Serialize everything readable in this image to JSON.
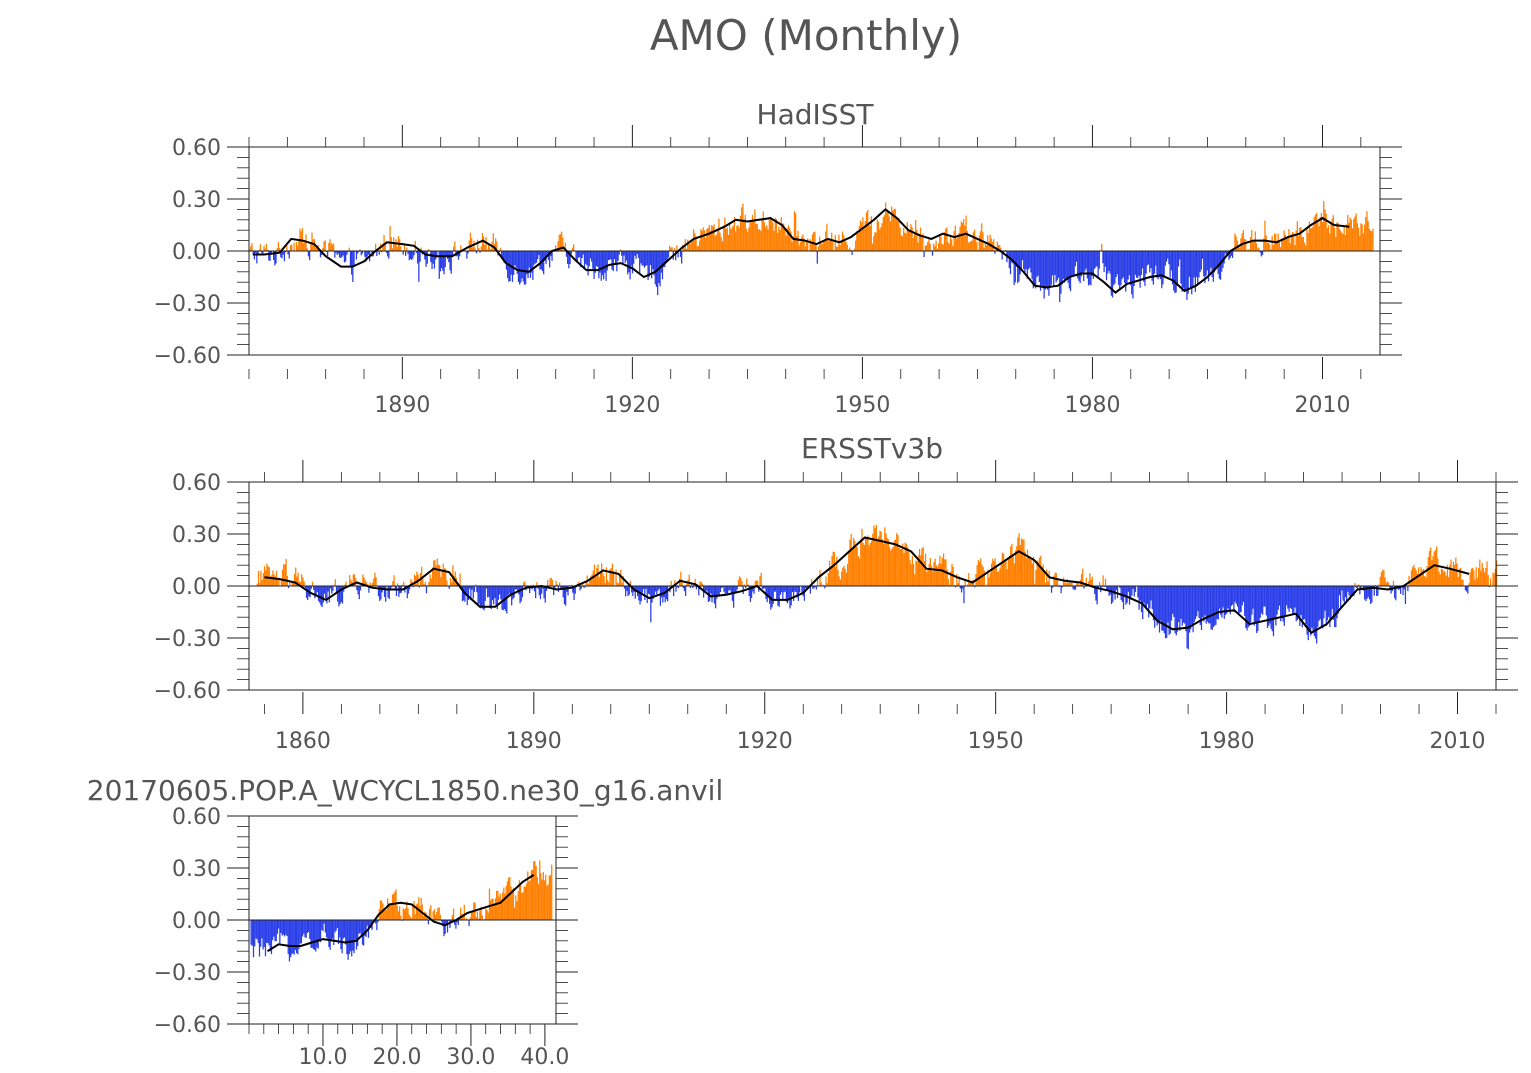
{
  "title": "AMO (Monthly)",
  "colors": {
    "positive": "#ff8000",
    "negative": "#2a3ee8",
    "smooth": "#000000",
    "axis": "#222222",
    "text": "#555555"
  },
  "chart_data": [
    {
      "type": "bar",
      "title": "HadISST",
      "xlim": [
        1870,
        2017.5
      ],
      "ylim": [
        -0.6,
        0.6
      ],
      "yticks": [
        -0.6,
        -0.3,
        0.0,
        0.3,
        0.6
      ],
      "ytick_labels": [
        "−0.60",
        "−0.30",
        "0.00",
        "0.30",
        "0.60"
      ],
      "xticks": [
        1890,
        1920,
        1950,
        1980,
        2010
      ],
      "xtick_labels": [
        "1890",
        "1920",
        "1950",
        "1980",
        "2010"
      ],
      "x_minor_step": 5,
      "data_start": 1870.0,
      "data_end": 2016.5,
      "smooth_start": 1870.5,
      "smooth_end": 2013.5,
      "smoothed_anomaly": [
        [
          1870.5,
          -0.02
        ],
        [
          1872,
          -0.02
        ],
        [
          1874,
          -0.01
        ],
        [
          1875.5,
          0.07
        ],
        [
          1877,
          0.06
        ],
        [
          1878.5,
          0.04
        ],
        [
          1880,
          -0.03
        ],
        [
          1882,
          -0.09
        ],
        [
          1883.5,
          -0.09
        ],
        [
          1885,
          -0.06
        ],
        [
          1886.5,
          0.0
        ],
        [
          1888,
          0.05
        ],
        [
          1890,
          0.04
        ],
        [
          1891.5,
          0.03
        ],
        [
          1893,
          -0.02
        ],
        [
          1894.5,
          -0.03
        ],
        [
          1896.5,
          -0.03
        ],
        [
          1898.5,
          0.02
        ],
        [
          1900.5,
          0.06
        ],
        [
          1902,
          0.02
        ],
        [
          1903.5,
          -0.07
        ],
        [
          1905,
          -0.11
        ],
        [
          1906.5,
          -0.12
        ],
        [
          1908,
          -0.07
        ],
        [
          1909.5,
          0.0
        ],
        [
          1911,
          0.02
        ],
        [
          1912.5,
          -0.05
        ],
        [
          1914,
          -0.11
        ],
        [
          1915.5,
          -0.11
        ],
        [
          1917,
          -0.08
        ],
        [
          1918.5,
          -0.07
        ],
        [
          1920,
          -0.1
        ],
        [
          1921.5,
          -0.15
        ],
        [
          1923,
          -0.12
        ],
        [
          1924.5,
          -0.06
        ],
        [
          1926.5,
          0.02
        ],
        [
          1928,
          0.07
        ],
        [
          1930,
          0.1
        ],
        [
          1932,
          0.14
        ],
        [
          1933.5,
          0.18
        ],
        [
          1935,
          0.17
        ],
        [
          1936.5,
          0.18
        ],
        [
          1938,
          0.19
        ],
        [
          1939.5,
          0.15
        ],
        [
          1941,
          0.07
        ],
        [
          1942.5,
          0.06
        ],
        [
          1944,
          0.04
        ],
        [
          1945.5,
          0.07
        ],
        [
          1947,
          0.05
        ],
        [
          1948.5,
          0.08
        ],
        [
          1950,
          0.13
        ],
        [
          1951.5,
          0.18
        ],
        [
          1953,
          0.24
        ],
        [
          1954.5,
          0.19
        ],
        [
          1956,
          0.12
        ],
        [
          1957.5,
          0.09
        ],
        [
          1959,
          0.07
        ],
        [
          1960.5,
          0.1
        ],
        [
          1962,
          0.08
        ],
        [
          1963.5,
          0.1
        ],
        [
          1965,
          0.07
        ],
        [
          1966.5,
          0.04
        ],
        [
          1968,
          0.0
        ],
        [
          1969.5,
          -0.05
        ],
        [
          1971,
          -0.12
        ],
        [
          1972.5,
          -0.2
        ],
        [
          1974,
          -0.21
        ],
        [
          1975.5,
          -0.2
        ],
        [
          1977,
          -0.15
        ],
        [
          1978.5,
          -0.13
        ],
        [
          1980,
          -0.13
        ],
        [
          1981.5,
          -0.18
        ],
        [
          1983,
          -0.24
        ],
        [
          1984.5,
          -0.19
        ],
        [
          1986,
          -0.17
        ],
        [
          1987.5,
          -0.15
        ],
        [
          1989,
          -0.14
        ],
        [
          1990.5,
          -0.17
        ],
        [
          1992,
          -0.23
        ],
        [
          1993.5,
          -0.2
        ],
        [
          1995,
          -0.15
        ],
        [
          1996.5,
          -0.08
        ],
        [
          1998,
          0.0
        ],
        [
          1999.5,
          0.04
        ],
        [
          2001,
          0.06
        ],
        [
          2002.5,
          0.06
        ],
        [
          2004,
          0.05
        ],
        [
          2005.5,
          0.08
        ],
        [
          2007,
          0.1
        ],
        [
          2008.5,
          0.15
        ],
        [
          2010,
          0.19
        ],
        [
          2011.5,
          0.15
        ],
        [
          2013.5,
          0.14
        ]
      ]
    },
    {
      "type": "bar",
      "title": "ERSSTv3b",
      "xlim": [
        1853,
        2015
      ],
      "ylim": [
        -0.6,
        0.6
      ],
      "yticks": [
        -0.6,
        -0.3,
        0.0,
        0.3,
        0.6
      ],
      "ytick_labels": [
        "−0.60",
        "−0.30",
        "0.00",
        "0.30",
        "0.60"
      ],
      "xticks": [
        1860,
        1890,
        1920,
        1950,
        1980,
        2010
      ],
      "xtick_labels": [
        "1860",
        "1890",
        "1920",
        "1950",
        "1980",
        "2010"
      ],
      "x_minor_step": 5,
      "data_start": 1854.0,
      "data_end": 2015.0,
      "smooth_start": 1855.0,
      "smooth_end": 2011.5,
      "smoothed_anomaly": [
        [
          1855,
          0.05
        ],
        [
          1857,
          0.04
        ],
        [
          1859,
          0.02
        ],
        [
          1861,
          -0.04
        ],
        [
          1863,
          -0.08
        ],
        [
          1865,
          -0.02
        ],
        [
          1867,
          0.02
        ],
        [
          1869,
          -0.01
        ],
        [
          1871,
          -0.02
        ],
        [
          1873,
          -0.02
        ],
        [
          1875,
          0.03
        ],
        [
          1877,
          0.1
        ],
        [
          1879,
          0.08
        ],
        [
          1881,
          -0.04
        ],
        [
          1883,
          -0.12
        ],
        [
          1885,
          -0.12
        ],
        [
          1887,
          -0.05
        ],
        [
          1889,
          -0.01
        ],
        [
          1891,
          0.0
        ],
        [
          1893,
          -0.02
        ],
        [
          1895,
          -0.01
        ],
        [
          1897,
          0.03
        ],
        [
          1899,
          0.09
        ],
        [
          1901,
          0.07
        ],
        [
          1903,
          -0.02
        ],
        [
          1905,
          -0.07
        ],
        [
          1907,
          -0.04
        ],
        [
          1909,
          0.03
        ],
        [
          1911,
          0.01
        ],
        [
          1913,
          -0.06
        ],
        [
          1915,
          -0.05
        ],
        [
          1917,
          -0.03
        ],
        [
          1919,
          0.0
        ],
        [
          1921,
          -0.08
        ],
        [
          1923,
          -0.08
        ],
        [
          1925,
          -0.04
        ],
        [
          1927,
          0.05
        ],
        [
          1929,
          0.12
        ],
        [
          1931,
          0.2
        ],
        [
          1933,
          0.28
        ],
        [
          1935,
          0.26
        ],
        [
          1937,
          0.24
        ],
        [
          1939,
          0.2
        ],
        [
          1941,
          0.1
        ],
        [
          1943,
          0.09
        ],
        [
          1945,
          0.05
        ],
        [
          1947,
          0.02
        ],
        [
          1949,
          0.08
        ],
        [
          1951,
          0.14
        ],
        [
          1953,
          0.2
        ],
        [
          1955,
          0.15
        ],
        [
          1957,
          0.05
        ],
        [
          1959,
          0.03
        ],
        [
          1961,
          0.02
        ],
        [
          1963,
          -0.01
        ],
        [
          1965,
          -0.03
        ],
        [
          1967,
          -0.06
        ],
        [
          1969,
          -0.1
        ],
        [
          1971,
          -0.2
        ],
        [
          1973,
          -0.25
        ],
        [
          1975,
          -0.24
        ],
        [
          1977,
          -0.19
        ],
        [
          1979,
          -0.15
        ],
        [
          1981,
          -0.14
        ],
        [
          1983,
          -0.22
        ],
        [
          1985,
          -0.2
        ],
        [
          1987,
          -0.18
        ],
        [
          1989,
          -0.16
        ],
        [
          1991,
          -0.27
        ],
        [
          1993,
          -0.22
        ],
        [
          1995,
          -0.12
        ],
        [
          1997,
          -0.02
        ],
        [
          1999,
          -0.01
        ],
        [
          2001,
          -0.02
        ],
        [
          2003,
          0.0
        ],
        [
          2005,
          0.06
        ],
        [
          2007,
          0.12
        ],
        [
          2009,
          0.1
        ],
        [
          2011.5,
          0.07
        ]
      ]
    },
    {
      "type": "bar",
      "title": "20170605.POP.A_WCYCL1850.ne30_g16.anvil",
      "xlim": [
        0,
        41.5
      ],
      "ylim": [
        -0.6,
        0.6
      ],
      "yticks": [
        -0.6,
        -0.3,
        0.0,
        0.3,
        0.6
      ],
      "ytick_labels": [
        "−0.60",
        "−0.30",
        "0.00",
        "0.30",
        "0.60"
      ],
      "xticks": [
        10,
        20,
        30,
        40
      ],
      "xtick_labels": [
        "10.0",
        "20.0",
        "30.0",
        "40.0"
      ],
      "x_minor_step": 2,
      "data_start": 0.2,
      "data_end": 41.0,
      "smooth_start": 2.5,
      "smooth_end": 38.5,
      "smoothed_anomaly": [
        [
          2.5,
          -0.18
        ],
        [
          4,
          -0.14
        ],
        [
          5.5,
          -0.15
        ],
        [
          7,
          -0.15
        ],
        [
          8.5,
          -0.13
        ],
        [
          10,
          -0.11
        ],
        [
          11.5,
          -0.12
        ],
        [
          13,
          -0.13
        ],
        [
          14.5,
          -0.12
        ],
        [
          16,
          -0.06
        ],
        [
          17.5,
          0.03
        ],
        [
          19,
          0.09
        ],
        [
          20.5,
          0.1
        ],
        [
          22,
          0.09
        ],
        [
          23.5,
          0.04
        ],
        [
          25,
          -0.01
        ],
        [
          26.5,
          -0.03
        ],
        [
          28,
          0.0
        ],
        [
          29.5,
          0.04
        ],
        [
          31,
          0.06
        ],
        [
          32.5,
          0.08
        ],
        [
          34,
          0.1
        ],
        [
          35.5,
          0.16
        ],
        [
          37,
          0.22
        ],
        [
          38.5,
          0.26
        ]
      ]
    }
  ]
}
